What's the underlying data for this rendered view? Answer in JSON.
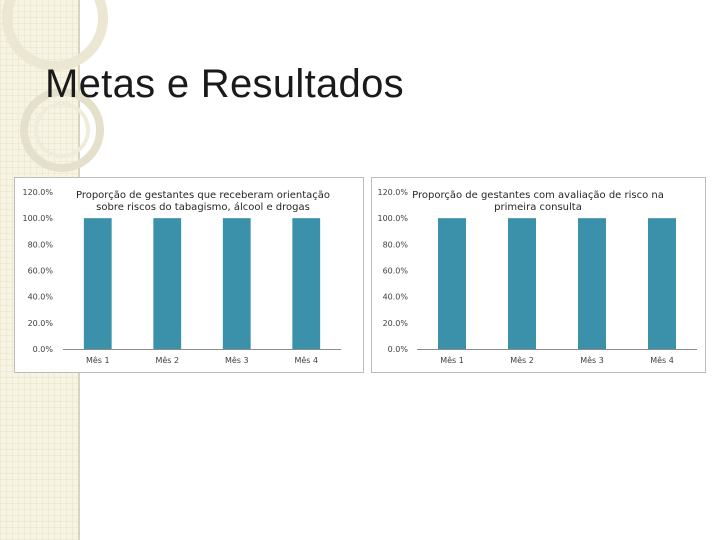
{
  "slide": {
    "title": "Metas e Resultados"
  },
  "colors": {
    "bar": "#3a91a9",
    "sidebar": "#f7f4e3"
  },
  "chart_data": [
    {
      "type": "bar",
      "title": "Proporção de gestantes que receberam orientação sobre riscos do tabagismo, álcool e drogas",
      "title_lines": [
        "Proporção de gestantes que receberam orientação",
        "sobre riscos do tabagismo, álcool e drogas"
      ],
      "categories": [
        "Mês 1",
        "Mês 2",
        "Mês 3",
        "Mês 4"
      ],
      "values": [
        1.0,
        1.0,
        1.0,
        1.0
      ],
      "ylim": [
        0,
        1.2
      ],
      "yticks": [
        0,
        0.2,
        0.4,
        0.6,
        0.8,
        1.0,
        1.2
      ],
      "ytick_labels": [
        "0.0%",
        "20.0%",
        "40.0%",
        "60.0%",
        "80.0%",
        "100.0%",
        "120.0%"
      ],
      "xlabel": "",
      "ylabel": "",
      "grid": false
    },
    {
      "type": "bar",
      "title": "Proporção de gestantes com avaliação de risco na primeira consulta",
      "title_lines": [
        "Proporção de gestantes com avaliação de risco na",
        "primeira consulta"
      ],
      "categories": [
        "Mês 1",
        "Mês 2",
        "Mês 3",
        "Mês 4"
      ],
      "values": [
        1.0,
        1.0,
        1.0,
        1.0
      ],
      "ylim": [
        0,
        1.2
      ],
      "yticks": [
        0,
        0.2,
        0.4,
        0.6,
        0.8,
        1.0,
        1.2
      ],
      "ytick_labels": [
        "0.0%",
        "20.0%",
        "40.0%",
        "60.0%",
        "80.0%",
        "100.0%",
        "120.0%"
      ],
      "xlabel": "",
      "ylabel": "",
      "grid": false
    }
  ]
}
